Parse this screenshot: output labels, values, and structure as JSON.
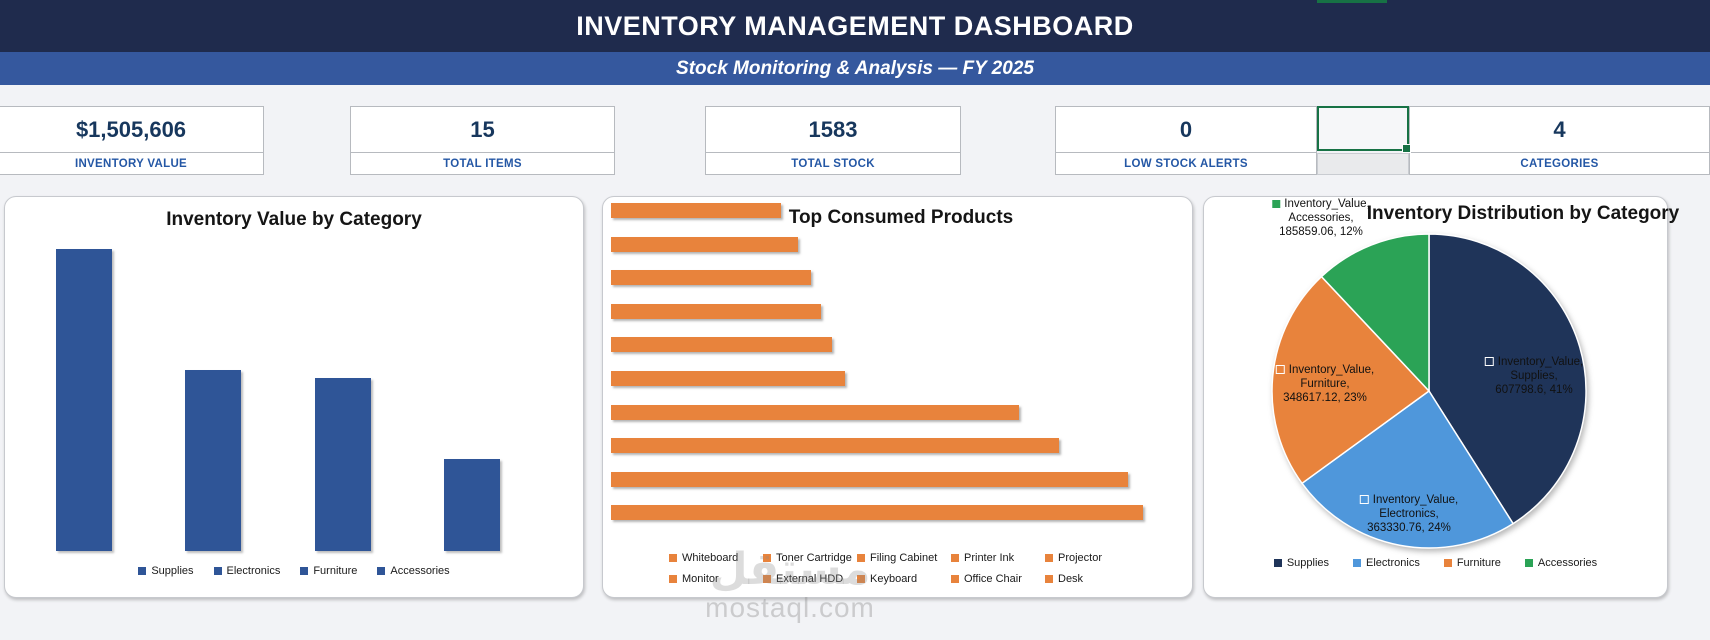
{
  "header": {
    "title": "INVENTORY MANAGEMENT DASHBOARD",
    "subtitle": "Stock Monitoring & Analysis — FY 2025"
  },
  "kpis": [
    {
      "value": "$1,505,606",
      "label": "INVENTORY VALUE"
    },
    {
      "value": "15",
      "label": "TOTAL ITEMS"
    },
    {
      "value": "1583",
      "label": "TOTAL STOCK"
    },
    {
      "value": "0",
      "label": "LOW STOCK ALERTS"
    },
    {
      "value": "4",
      "label": "CATEGORIES"
    }
  ],
  "colors": {
    "header_bg": "#1F2B4D",
    "subtitle_bg": "#35589E",
    "kpi_value_text": "#17375D",
    "kpi_label_text": "#2457A5",
    "excel_selection_green": "#177245",
    "series_blue": "#2F5597",
    "series_orange": "#E8833C",
    "pie_navy": "#1F3459",
    "pie_blue": "#4F97DB",
    "pie_orange": "#E8833C",
    "pie_green": "#2BA356"
  },
  "chart_data": [
    {
      "type": "bar",
      "title": "Inventory Value by Category",
      "categories": [
        "Supplies",
        "Electronics",
        "Furniture",
        "Accessories"
      ],
      "values": [
        607798.6,
        363330.76,
        348617.12,
        185859.06
      ],
      "series_color": "#2F5597",
      "xlabel": "",
      "ylabel": "",
      "value_axis_visible": false,
      "grid": false,
      "legend_position": "bottom"
    },
    {
      "type": "bar",
      "orientation": "horizontal",
      "title": "Top Consumed Products",
      "categories": [
        "Whiteboard",
        "Toner Cartridge",
        "Filing Cabinet",
        "Printer Ink",
        "Projector",
        "Monitor",
        "External HDD",
        "Keyboard",
        "Office Chair",
        "Desk"
      ],
      "values_relative_pct": [
        32,
        35.2,
        37.5,
        39.4,
        41.6,
        43.9,
        76.6,
        84.2,
        97.2,
        100
      ],
      "note": "no value axis or data labels shown; bar lengths estimated relative to longest bar (Desk = 100)",
      "series_color": "#E8833C",
      "grid": false,
      "legend_position": "bottom",
      "legend_rows": 2
    },
    {
      "type": "pie",
      "title": "Inventory Distribution by Category",
      "start_angle_deg": 0,
      "direction": "clockwise",
      "slices": [
        {
          "label": "Supplies",
          "value": 607798.6,
          "pct": 41,
          "color": "#1F3459",
          "marker_style": "white-hollow",
          "data_label_lines": [
            "Inventory_Value,",
            "Supplies,",
            "607798.6, 41%"
          ]
        },
        {
          "label": "Electronics",
          "value": 363330.76,
          "pct": 24,
          "color": "#4F97DB",
          "marker_style": "white-hollow",
          "data_label_lines": [
            "Inventory_Value,",
            "Electronics,",
            "363330.76, 24%"
          ]
        },
        {
          "label": "Furniture",
          "value": 348617.12,
          "pct": 23,
          "color": "#E8833C",
          "marker_style": "white-hollow",
          "data_label_lines": [
            "Inventory_Value,",
            "Furniture,",
            "348617.12, 23%"
          ]
        },
        {
          "label": "Accessories",
          "value": 185859.06,
          "pct": 12,
          "color": "#2BA356",
          "marker_style": "green-filled",
          "data_label_lines": [
            "Inventory_Value,",
            "Accessories,",
            "185859.06, 12%"
          ]
        }
      ],
      "legend": [
        "Supplies",
        "Electronics",
        "Furniture",
        "Accessories"
      ],
      "legend_position": "bottom"
    }
  ],
  "watermark": {
    "logo": "مستقل",
    "domain": "mostaql.com"
  }
}
